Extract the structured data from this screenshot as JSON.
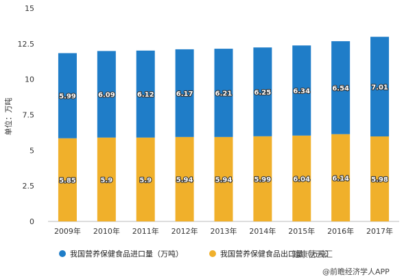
{
  "chart_data": {
    "type": "bar",
    "stacked": true,
    "categories": [
      "2009年",
      "2010年",
      "2011年",
      "2012年",
      "2013年",
      "2014年",
      "2015年",
      "2016年",
      "2017年"
    ],
    "series": [
      {
        "name": "我国营养保健食品出口量（万吨）",
        "values": [
          5.85,
          5.9,
          5.9,
          5.94,
          5.94,
          5.99,
          6.04,
          6.14,
          5.98
        ],
        "color": "#F0B02B"
      },
      {
        "name": "我国营养保健食品进口量（万吨）",
        "values": [
          5.99,
          6.09,
          6.12,
          6.17,
          6.21,
          6.25,
          6.34,
          6.54,
          7.01
        ],
        "color": "#1F7DC8"
      }
    ],
    "value_labels": {
      "export": [
        "5.85",
        "5.9",
        "5.9",
        "5.94",
        "5.94",
        "5.99",
        "6.04",
        "6.14",
        "5.98"
      ],
      "import": [
        "5.99",
        "6.09",
        "6.12",
        "6.17",
        "6.21",
        "6.25",
        "6.34",
        "6.54",
        "7.01"
      ]
    },
    "ylabel": "单位：万吨",
    "ylim": [
      0,
      15
    ],
    "yticks": [
      "0",
      "2.5",
      "5",
      "7.5",
      "10",
      "12.5",
      "15"
    ],
    "legend": [
      {
        "label": "我国营养保健食品进口量（万吨）",
        "color": "#1F7DC8"
      },
      {
        "label": "我国营养保健食品出口量（万吨）",
        "color": "#F0B02B"
      }
    ],
    "legend_position": "bottom",
    "grid": false
  },
  "watermark": {
    "line1": "健康营云汇",
    "line2": "@前瞻经济学人APP"
  }
}
